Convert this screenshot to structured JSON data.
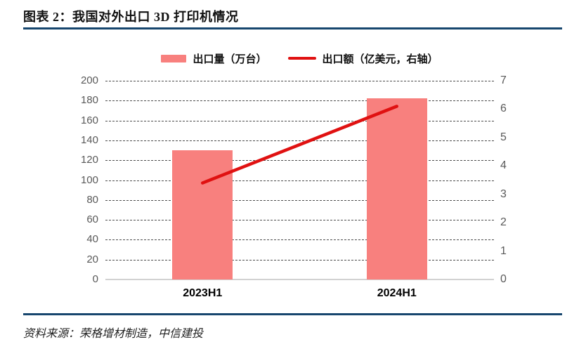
{
  "page": {
    "title_label": "图表 2：我国对外出口 3D 打印机情况",
    "source_label": "资料来源：荣格增材制造，中信建投"
  },
  "colors": {
    "bar": "#F8807E",
    "line": "#E01111",
    "rule": "#17466E",
    "axis_text": "#595959",
    "grid": "#4D4D4D",
    "baseline": "#D2D2D2"
  },
  "chart_data": {
    "type": "bar",
    "subtype": "dual-axis bar + line",
    "title": "图表 2：我国对外出口 3D 打印机情况",
    "categories": [
      "2023H1",
      "2024H1"
    ],
    "series": [
      {
        "name": "出口量（万台）",
        "type": "bar",
        "axis": "left",
        "color": "#F8807E",
        "values": [
          130,
          182
        ]
      },
      {
        "name": "出口额（亿美元，右轴）",
        "type": "line",
        "axis": "right",
        "color": "#E01111",
        "values": [
          3.4,
          6.1
        ]
      }
    ],
    "left_axis": {
      "min": 0,
      "max": 200,
      "tick_step": 20,
      "ticks": [
        "0",
        "20",
        "40",
        "60",
        "80",
        "100",
        "120",
        "140",
        "160",
        "180",
        "200"
      ]
    },
    "right_axis": {
      "min": 0,
      "max": 7,
      "tick_step": 1,
      "ticks": [
        "0",
        "1",
        "2",
        "3",
        "4",
        "5",
        "6",
        "7"
      ]
    },
    "legend": [
      "出口量（万台）",
      "出口额（亿美元，右轴）"
    ],
    "legend_position": "top",
    "grid": "horizontal dashed",
    "source": "资料来源：荣格增材制造，中信建投"
  }
}
